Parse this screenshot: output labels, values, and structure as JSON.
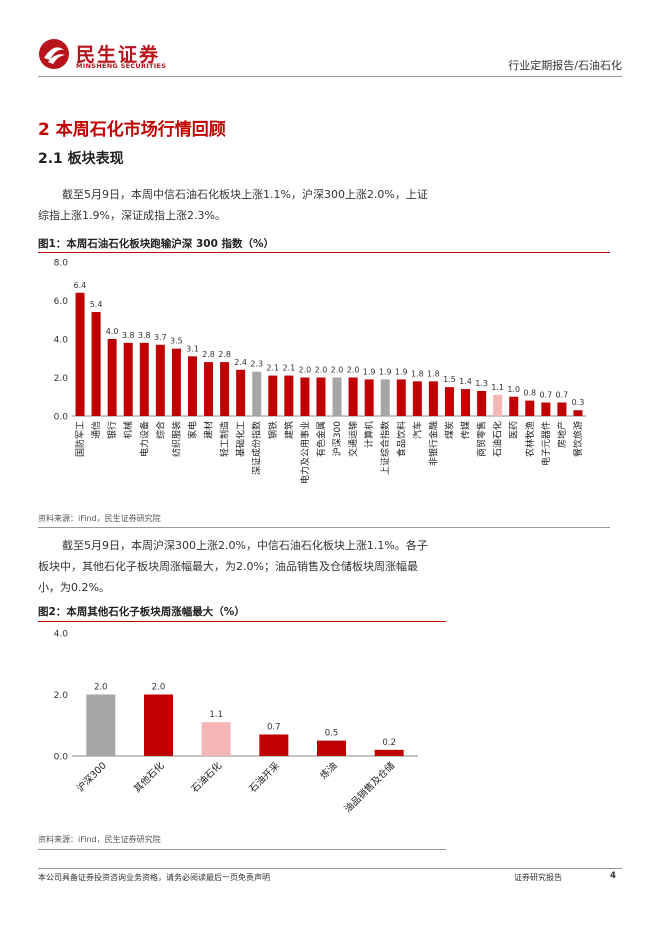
{
  "header": {
    "logo_cn": "民生证券",
    "logo_en": "MINSHENG SECURITIES",
    "breadcrumb": "行业定期报告/石油石化"
  },
  "section": {
    "title": "2 本周石化市场行情回顾",
    "subtitle": "2.1 板块表现",
    "para1": "截至5月9日，本周中信石油石化板块上涨1.1%，沪深300上涨2.0%，上证综指上涨1.9%，深证成指上涨2.3%。",
    "para2": "截至5月9日，本周沪深300上涨2.0%，中信石油石化板块上涨1.1%。各子板块中，其他石化子板块周涨幅最大，为2.0%；油品销售及仓储板块周涨幅最小，为0.2%。"
  },
  "figure1": {
    "title": "图1：本周石油石化板块跑输沪深 300 指数（%）",
    "source": "资料来源：iFind，民生证券研究院"
  },
  "figure2": {
    "title": "图2：本周其他石化子板块周涨幅最大（%）",
    "source": "资料来源：iFind，民生证券研究院"
  },
  "footer": {
    "disclaimer": "本公司具备证券投资咨询业务资格，请务必阅读最后一页免责声明",
    "report_type": "证券研究报告",
    "page": "4"
  },
  "chart_data": [
    {
      "type": "bar",
      "categories": [
        "国防军工",
        "通信",
        "银行",
        "机械",
        "电力设备",
        "综合",
        "纺织服装",
        "家电",
        "建材",
        "轻工制造",
        "基础化工",
        "深证成份指数",
        "钢铁",
        "建筑",
        "电力及公用事业",
        "有色金属",
        "沪深300",
        "交通运输",
        "计算机",
        "上证综合指数",
        "食品饮料",
        "汽车",
        "非银行金融",
        "煤炭",
        "传媒",
        "商贸零售",
        "石油石化",
        "医药",
        "农林牧渔",
        "电子元器件",
        "房地产",
        "餐饮旅游"
      ],
      "values": [
        6.4,
        5.4,
        4.0,
        3.8,
        3.8,
        3.7,
        3.5,
        3.1,
        2.8,
        2.8,
        2.4,
        2.3,
        2.1,
        2.1,
        2.0,
        2.0,
        2.0,
        2.0,
        1.9,
        1.9,
        1.9,
        1.8,
        1.8,
        1.5,
        1.4,
        1.3,
        1.1,
        1.0,
        0.8,
        0.7,
        0.7,
        0.3
      ],
      "value_labels": [
        "6.4",
        "5.4",
        "4.0",
        "3.8",
        "3.8",
        "3.7",
        "3.5",
        "3.1",
        "2.8",
        "2.8",
        "2.4",
        "2.3",
        "2.1",
        "2.1",
        "2.0",
        "2.0",
        "2.0",
        "2.0",
        "1.9",
        "1.9",
        "1.9",
        "1.8",
        "1.8",
        "1.5",
        "1.4",
        "1.3",
        "1.1",
        "1.0",
        "0.8",
        "0.7",
        "0.7",
        "0.3"
      ],
      "bar_colors": [
        "#c00000",
        "#c00000",
        "#c00000",
        "#c00000",
        "#c00000",
        "#c00000",
        "#c00000",
        "#c00000",
        "#c00000",
        "#c00000",
        "#c00000",
        "#a6a6a6",
        "#c00000",
        "#c00000",
        "#c00000",
        "#c00000",
        "#a6a6a6",
        "#c00000",
        "#c00000",
        "#a6a6a6",
        "#c00000",
        "#c00000",
        "#c00000",
        "#c00000",
        "#c00000",
        "#c00000",
        "#f4b6b6",
        "#c00000",
        "#c00000",
        "#c00000",
        "#c00000",
        "#c00000"
      ],
      "ylim": [
        0,
        8
      ],
      "yticks": [
        "0.0",
        "2.0",
        "4.0",
        "6.0",
        "8.0"
      ],
      "grid": false
    },
    {
      "type": "bar",
      "categories": [
        "沪深300",
        "其他石化",
        "石油石化",
        "石油开采",
        "炼油",
        "油品销售及仓储"
      ],
      "values": [
        2.0,
        2.0,
        1.1,
        0.7,
        0.5,
        0.2
      ],
      "value_labels": [
        "2.0",
        "2.0",
        "1.1",
        "0.7",
        "0.5",
        "0.2"
      ],
      "bar_colors": [
        "#a6a6a6",
        "#c00000",
        "#f4b6b6",
        "#c00000",
        "#c00000",
        "#c00000"
      ],
      "ylim": [
        0,
        4
      ],
      "yticks": [
        "0.0",
        "2.0",
        "4.0"
      ],
      "grid": false
    }
  ]
}
